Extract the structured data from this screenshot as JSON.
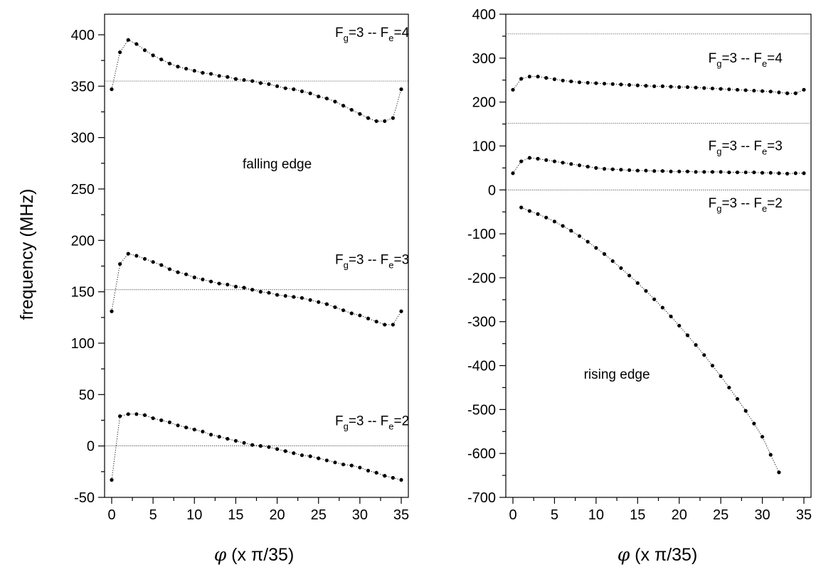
{
  "chart_data": [
    {
      "type": "scatter",
      "panel": "left",
      "ylabel": "frequency (MHz)",
      "xlabel_phi": "φ",
      "xlabel_rest": " (x  π/35)",
      "xlim": [
        0,
        35
      ],
      "ylim": [
        -50,
        420
      ],
      "xticks": [
        0,
        5,
        10,
        15,
        20,
        25,
        30,
        35
      ],
      "yticks": [
        -50,
        0,
        50,
        100,
        150,
        200,
        250,
        300,
        350,
        400
      ],
      "annotations": [
        {
          "text": "falling edge",
          "x": 20,
          "y": 270
        }
      ],
      "reference_lines": [
        355,
        152,
        0
      ],
      "series": [
        {
          "label_main": "F",
          "label_sub1": "g",
          "label_mid": "=3 -- F",
          "label_sub2": "e",
          "label_end": "=4",
          "label_at": [
            27,
            398
          ],
          "x": [
            0,
            1,
            2,
            3,
            4,
            5,
            6,
            7,
            8,
            9,
            10,
            11,
            12,
            13,
            14,
            15,
            16,
            17,
            18,
            19,
            20,
            21,
            22,
            23,
            24,
            25,
            26,
            27,
            28,
            29,
            30,
            31,
            32,
            33,
            34,
            35
          ],
          "y": [
            347,
            383,
            395,
            391,
            385,
            380,
            376,
            372,
            369,
            367,
            365,
            363,
            362,
            360,
            359,
            357,
            356,
            355,
            353,
            352,
            350,
            348,
            347,
            345,
            343,
            340,
            338,
            335,
            331,
            327,
            323,
            319,
            316,
            316,
            319,
            347
          ]
        },
        {
          "label_main": "F",
          "label_sub1": "g",
          "label_mid": "=3 -- F",
          "label_sub2": "e",
          "label_end": "=3",
          "label_at": [
            27,
            177
          ],
          "x": [
            0,
            1,
            2,
            3,
            4,
            5,
            6,
            7,
            8,
            9,
            10,
            11,
            12,
            13,
            14,
            15,
            16,
            17,
            18,
            19,
            20,
            21,
            22,
            23,
            24,
            25,
            26,
            27,
            28,
            29,
            30,
            31,
            32,
            33,
            34,
            35
          ],
          "y": [
            131,
            177,
            187,
            185,
            182,
            179,
            176,
            172,
            169,
            167,
            164,
            162,
            160,
            158,
            157,
            155,
            154,
            152,
            150,
            149,
            147,
            146,
            145,
            144,
            142,
            140,
            138,
            135,
            132,
            129,
            127,
            124,
            121,
            118,
            118,
            131
          ]
        },
        {
          "label_main": "F",
          "label_sub1": "g",
          "label_mid": "=3 -- F",
          "label_sub2": "e",
          "label_end": "=2",
          "label_at": [
            27,
            20
          ],
          "x": [
            0,
            1,
            2,
            3,
            4,
            5,
            6,
            7,
            8,
            9,
            10,
            11,
            12,
            13,
            14,
            15,
            16,
            17,
            18,
            19,
            20,
            21,
            22,
            23,
            24,
            25,
            26,
            27,
            28,
            29,
            30,
            31,
            32,
            33,
            34,
            35
          ],
          "y": [
            -33,
            29,
            31,
            31,
            30,
            27,
            25,
            23,
            20,
            18,
            16,
            14,
            11,
            9,
            7,
            5,
            3,
            1,
            0,
            -1,
            -3,
            -5,
            -7,
            -9,
            -10,
            -12,
            -14,
            -16,
            -18,
            -19,
            -21,
            -24,
            -26,
            -29,
            -31,
            -33
          ]
        }
      ]
    },
    {
      "type": "scatter",
      "panel": "right",
      "ylabel": "",
      "xlabel_phi": "φ",
      "xlabel_rest": " (x  π/35)",
      "xlim": [
        0,
        35
      ],
      "ylim": [
        -700,
        400
      ],
      "xticks": [
        0,
        5,
        10,
        15,
        20,
        25,
        30,
        35
      ],
      "yticks": [
        -700,
        -600,
        -500,
        -400,
        -300,
        -200,
        -100,
        0,
        100,
        200,
        300,
        400
      ],
      "annotations": [
        {
          "text": "rising edge",
          "x": 12.5,
          "y": -430
        }
      ],
      "reference_lines": [
        355,
        152,
        0
      ],
      "series": [
        {
          "label_main": "F",
          "label_sub1": "g",
          "label_mid": "=3 -- F",
          "label_sub2": "e",
          "label_end": "=4",
          "label_at": [
            23.5,
            290
          ],
          "x": [
            0,
            1,
            2,
            3,
            4,
            5,
            6,
            7,
            8,
            9,
            10,
            11,
            12,
            13,
            14,
            15,
            16,
            17,
            18,
            19,
            20,
            21,
            22,
            23,
            24,
            25,
            26,
            27,
            28,
            29,
            30,
            31,
            32,
            33,
            34,
            35
          ],
          "y": [
            228,
            253,
            258,
            258,
            255,
            252,
            249,
            247,
            245,
            244,
            243,
            242,
            241,
            240,
            239,
            238,
            237,
            236,
            236,
            235,
            234,
            234,
            233,
            232,
            231,
            230,
            229,
            228,
            227,
            226,
            225,
            224,
            222,
            220,
            220,
            228
          ]
        },
        {
          "label_main": "F",
          "label_sub1": "g",
          "label_mid": "=3 -- F",
          "label_sub2": "e",
          "label_end": "=3",
          "label_at": [
            23.5,
            90
          ],
          "x": [
            0,
            1,
            2,
            3,
            4,
            5,
            6,
            7,
            8,
            9,
            10,
            11,
            12,
            13,
            14,
            15,
            16,
            17,
            18,
            19,
            20,
            21,
            22,
            23,
            24,
            25,
            26,
            27,
            28,
            29,
            30,
            31,
            32,
            33,
            34,
            35
          ],
          "y": [
            38,
            65,
            73,
            71,
            68,
            65,
            62,
            59,
            56,
            53,
            50,
            48,
            47,
            46,
            45,
            44,
            44,
            43,
            43,
            42,
            42,
            42,
            41,
            41,
            41,
            41,
            40,
            40,
            40,
            40,
            39,
            39,
            38,
            37,
            38,
            38
          ]
        },
        {
          "label_main": "F",
          "label_sub1": "g",
          "label_mid": "=3 -- F",
          "label_sub2": "e",
          "label_end": "=2",
          "label_at": [
            23.5,
            -40
          ],
          "x": [
            1,
            2,
            3,
            4,
            5,
            6,
            7,
            8,
            9,
            10,
            11,
            12,
            13,
            14,
            15,
            16,
            17,
            18,
            19,
            20,
            21,
            22,
            23,
            24,
            25,
            26,
            27,
            28,
            29,
            30,
            31,
            32
          ],
          "y": [
            -40,
            -48,
            -55,
            -63,
            -72,
            -82,
            -93,
            -105,
            -118,
            -132,
            -146,
            -162,
            -178,
            -195,
            -212,
            -230,
            -249,
            -268,
            -288,
            -309,
            -331,
            -353,
            -376,
            -400,
            -424,
            -450,
            -476,
            -503,
            -532,
            -562,
            -603,
            -643
          ]
        }
      ]
    }
  ]
}
